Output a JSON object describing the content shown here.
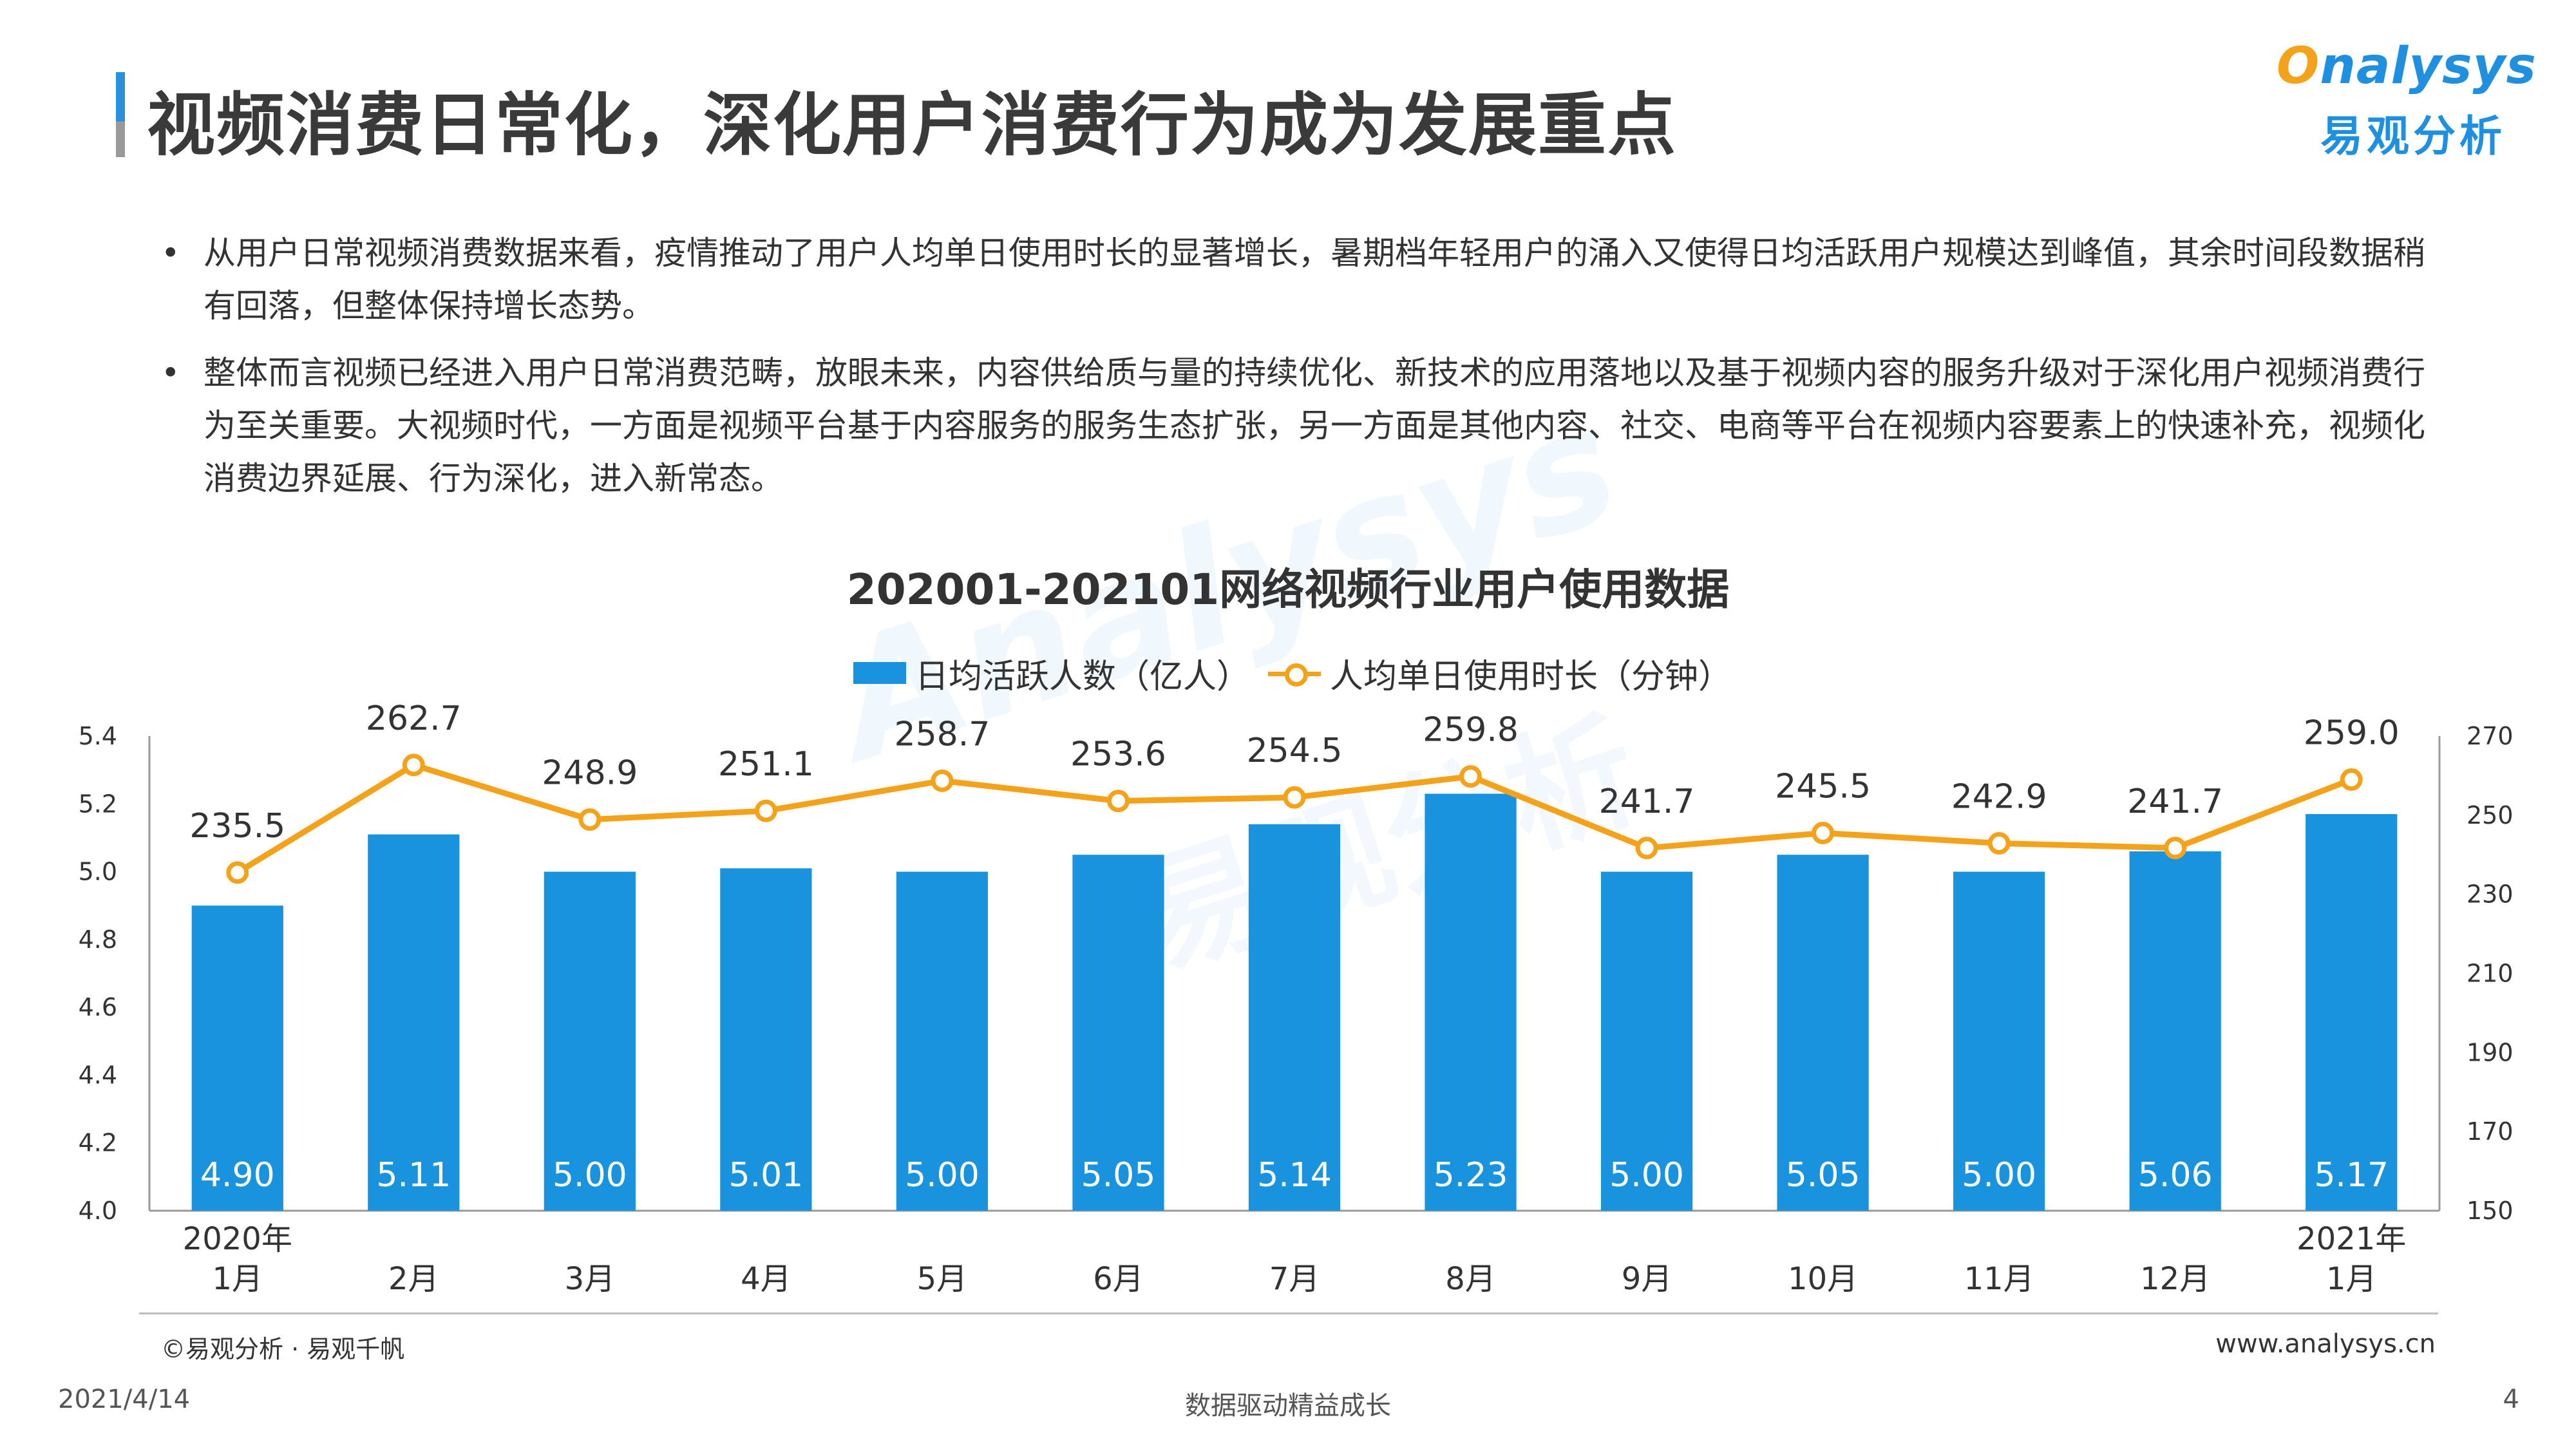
{
  "header": {
    "title": "视频消费日常化，深化用户消费行为成为发展重点",
    "logo_text_en_head": "",
    "logo_text_en_o": "O",
    "logo_text_en_tail": "nalysys",
    "logo_text_cn": "易观分析"
  },
  "bullets": [
    "从用户日常视频消费数据来看，疫情推动了用户人均单日使用时长的显著增长，暑期档年轻用户的涌入又使得日均活跃用户规模达到峰值，其余时间段数据稍有回落，但整体保持增长态势。",
    "整体而言视频已经进入用户日常消费范畴，放眼未来，内容供给质与量的持续优化、新技术的应用落地以及基于视频内容的服务升级对于深化用户视频消费行为至关重要。大视频时代，一方面是视频平台基于内容服务的服务生态扩张，另一方面是其他内容、社交、电商等平台在视频内容要素上的快速补充，视频化消费边界延展、行为深化，进入新常态。"
  ],
  "bullet_symbol": "•",
  "watermark": {
    "en": "Analysys",
    "cn": "易观分析"
  },
  "chart_data": {
    "type": "bar",
    "title": "202001-202101网络视频行业用户使用数据",
    "categories": [
      [
        "2020年",
        "1月"
      ],
      [
        "2月"
      ],
      [
        "3月"
      ],
      [
        "4月"
      ],
      [
        "5月"
      ],
      [
        "6月"
      ],
      [
        "7月"
      ],
      [
        "8月"
      ],
      [
        "9月"
      ],
      [
        "10月"
      ],
      [
        "11月"
      ],
      [
        "12月"
      ],
      [
        "2021年",
        "1月"
      ]
    ],
    "series": [
      {
        "name": "日均活跃人数（亿人）",
        "type": "bar",
        "axis": "left",
        "color": "#1a93de",
        "values": [
          4.9,
          5.11,
          5.0,
          5.01,
          5.0,
          5.05,
          5.14,
          5.23,
          5.0,
          5.05,
          5.0,
          5.06,
          5.17
        ],
        "labels": [
          "4.90",
          "5.11",
          "5.00",
          "5.01",
          "5.00",
          "5.05",
          "5.14",
          "5.23",
          "5.00",
          "5.05",
          "5.00",
          "5.06",
          "5.17"
        ]
      },
      {
        "name": "人均单日使用时长（分钟）",
        "type": "line",
        "axis": "right",
        "color": "#f5a21b",
        "values": [
          235.5,
          262.7,
          248.9,
          251.1,
          258.7,
          253.6,
          254.5,
          259.8,
          241.7,
          245.5,
          242.9,
          241.7,
          259.0
        ],
        "labels": [
          "235.5",
          "262.7",
          "248.9",
          "251.1",
          "258.7",
          "253.6",
          "254.5",
          "259.8",
          "241.7",
          "245.5",
          "242.9",
          "241.7",
          "259.0"
        ]
      }
    ],
    "y_left": {
      "min": 4.0,
      "max": 5.4,
      "ticks": [
        "4.0",
        "4.2",
        "4.4",
        "4.6",
        "4.8",
        "5.0",
        "5.2",
        "5.4"
      ]
    },
    "y_right": {
      "min": 150,
      "max": 270,
      "ticks": [
        "150",
        "170",
        "190",
        "210",
        "230",
        "250",
        "270"
      ]
    },
    "legend_position": "top-center",
    "grid": false
  },
  "footer": {
    "source": "©易观分析 · 易观千帆",
    "website": "www.analysys.cn",
    "date": "2021/4/14",
    "tagline": "数据驱动精益成长",
    "page_number": "4"
  }
}
